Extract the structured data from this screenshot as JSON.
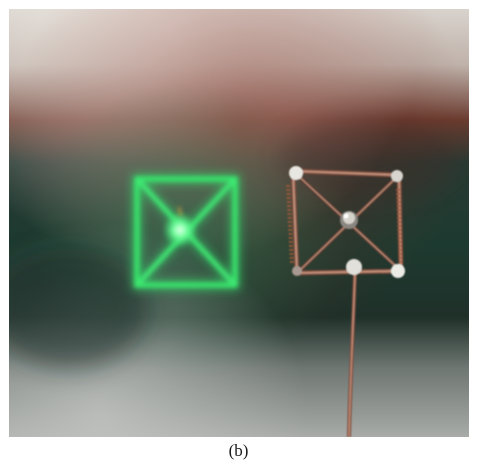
{
  "figure": {
    "caption": "(b)",
    "photo": {
      "subject": "hologram-and-wire-pyramid",
      "hologram_color": "#38e36a",
      "wire_color": "#b0786a",
      "background_color": "#1d3a30"
    }
  }
}
